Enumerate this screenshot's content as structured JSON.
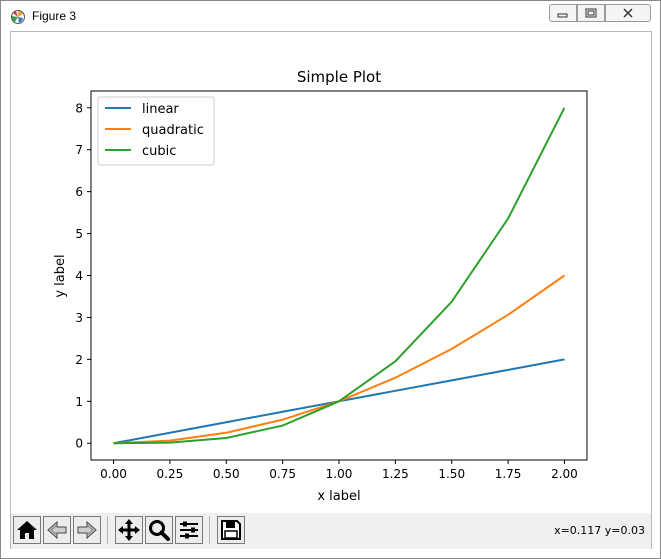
{
  "window": {
    "title": "Figure 3"
  },
  "toolbar": {
    "buttons": [
      "home-icon",
      "back-icon",
      "forward-icon",
      "pan-icon",
      "zoom-icon",
      "configure-subplots-icon",
      "save-icon"
    ],
    "coords": "x=0.117 y=0.03"
  },
  "chart_data": {
    "type": "line",
    "title": "Simple Plot",
    "xlabel": "x label",
    "ylabel": "y label",
    "xlim": [
      -0.1,
      2.1
    ],
    "ylim": [
      -0.4,
      8.4
    ],
    "xticks": [
      "0.00",
      "0.25",
      "0.50",
      "0.75",
      "1.00",
      "1.25",
      "1.50",
      "1.75",
      "2.00"
    ],
    "yticks": [
      "0",
      "1",
      "2",
      "3",
      "4",
      "5",
      "6",
      "7",
      "8"
    ],
    "grid": false,
    "legend": "upper-left",
    "x": [
      0.0,
      0.25,
      0.5,
      0.75,
      1.0,
      1.25,
      1.5,
      1.75,
      2.0
    ],
    "series": [
      {
        "name": "linear",
        "color": "#1f77b4",
        "values": [
          0.0,
          0.25,
          0.5,
          0.75,
          1.0,
          1.25,
          1.5,
          1.75,
          2.0
        ]
      },
      {
        "name": "quadratic",
        "color": "#ff7f0e",
        "values": [
          0.0,
          0.0625,
          0.25,
          0.5625,
          1.0,
          1.5625,
          2.25,
          3.0625,
          4.0
        ]
      },
      {
        "name": "cubic",
        "color": "#2ca02c",
        "values": [
          0.0,
          0.015625,
          0.125,
          0.421875,
          1.0,
          1.953125,
          3.375,
          5.359375,
          8.0
        ]
      }
    ]
  }
}
